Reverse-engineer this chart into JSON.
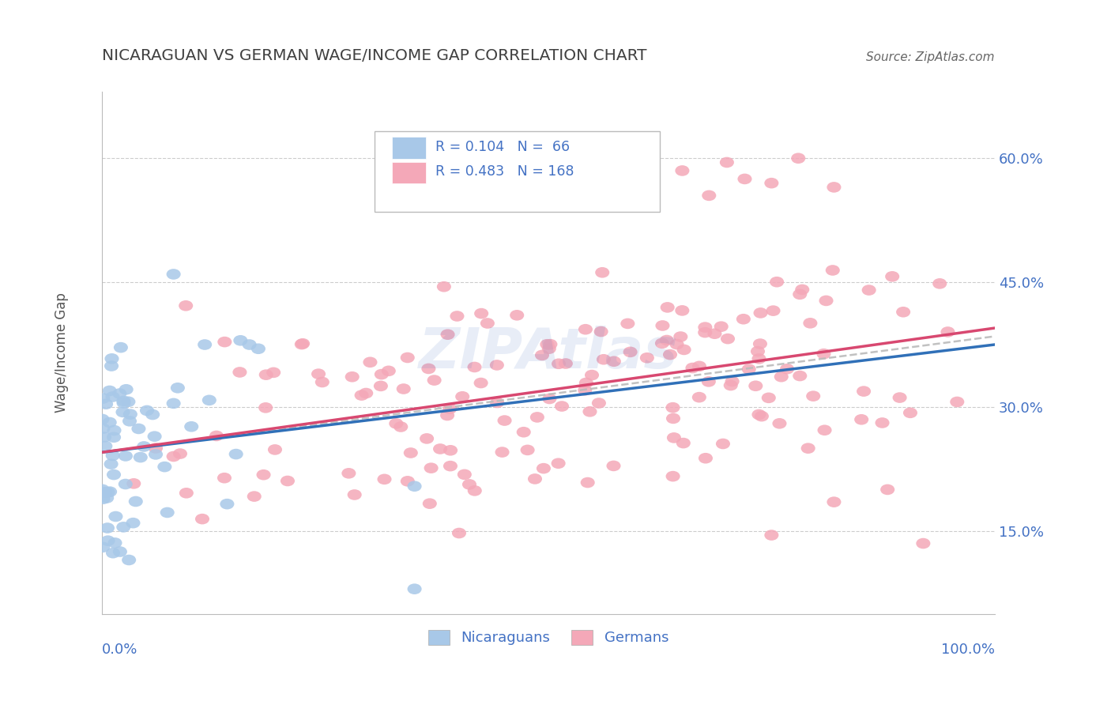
{
  "title": "NICARAGUAN VS GERMAN WAGE/INCOME GAP CORRELATION CHART",
  "source": "Source: ZipAtlas.com",
  "ylabel": "Wage/Income Gap",
  "blue_R": 0.104,
  "blue_N": 66,
  "pink_R": 0.483,
  "pink_N": 168,
  "blue_color": "#a8c8e8",
  "pink_color": "#f4a8b8",
  "blue_line_color": "#3070b8",
  "pink_line_color": "#d84870",
  "text_color": "#4472c4",
  "title_color": "#404040",
  "background_color": "#ffffff",
  "grid_color": "#cccccc",
  "ytick_vals": [
    0.15,
    0.3,
    0.45,
    0.6
  ],
  "xlim": [
    0.0,
    1.0
  ],
  "ylim": [
    0.05,
    0.68
  ],
  "blue_line_x0": 0.0,
  "blue_line_x1": 1.0,
  "blue_line_y0": 0.245,
  "blue_line_y1": 0.375,
  "pink_line_x0": 0.0,
  "pink_line_x1": 1.0,
  "pink_line_y0": 0.245,
  "pink_line_y1": 0.395,
  "watermark": "ZIPAtlas"
}
